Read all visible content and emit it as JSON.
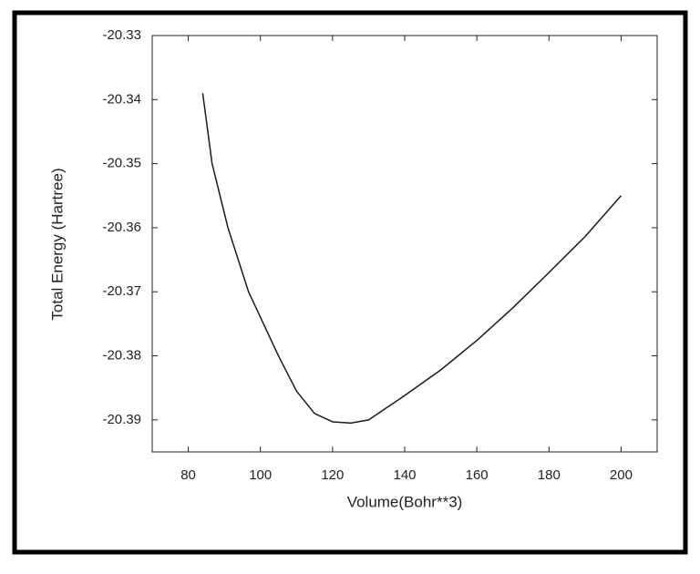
{
  "chart_data": {
    "type": "line",
    "x_label": "Volume(Bohr**3)",
    "y_label": "Total Energy (Hartree)",
    "x": [
      84,
      86.6,
      91,
      96.7,
      105,
      110,
      115,
      120,
      125,
      130,
      140,
      150,
      160,
      170,
      180,
      190,
      200
    ],
    "series": [
      {
        "color": "#1a1a1a",
        "values": [
          -20.339,
          -20.35,
          -20.36,
          -20.37,
          -20.38,
          -20.3855,
          -20.389,
          -20.3903,
          -20.3905,
          -20.39,
          -20.3862,
          -20.3822,
          -20.3776,
          -20.3725,
          -20.367,
          -20.3614,
          -20.355
        ]
      }
    ],
    "xlim": [
      70,
      210
    ],
    "ylim": [
      -20.395,
      -20.33
    ],
    "xticks": [
      80,
      100,
      120,
      140,
      160,
      180,
      200
    ],
    "yticks": [
      -20.39,
      -20.38,
      -20.37,
      -20.36,
      -20.35,
      -20.34,
      -20.33
    ],
    "grid": false
  }
}
